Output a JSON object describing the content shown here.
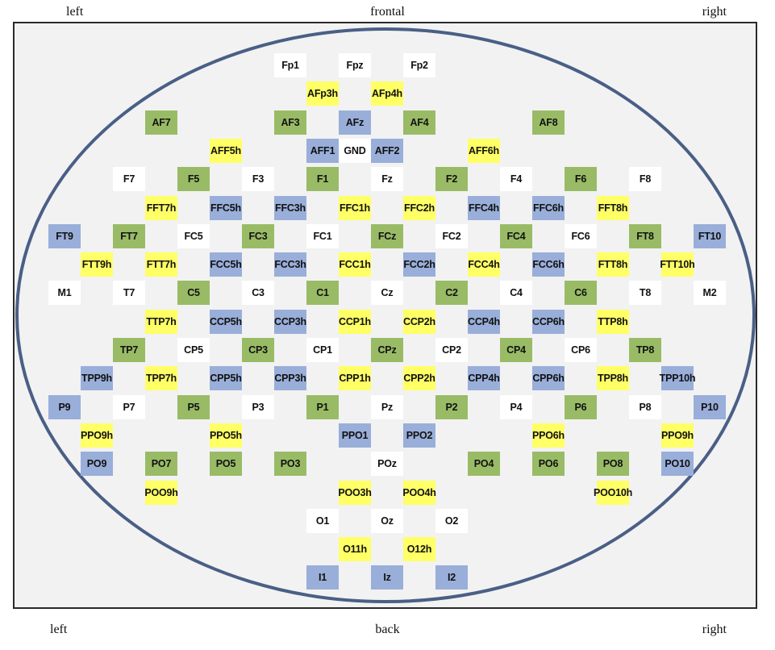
{
  "captions": {
    "top_left": "left",
    "top_center": "frontal",
    "top_right": "right",
    "bottom_left": "left",
    "bottom_center": "back",
    "bottom_right": "right"
  },
  "colors": {
    "W": "#ffffff",
    "Y": "#ffff66",
    "G": "#99bb66",
    "B": "#99aed9",
    "head_outline": "#4a5f86",
    "background": "#f2f2f2"
  },
  "rows": [
    {
      "cells": [
        [
          8,
          "Fp1",
          "W"
        ],
        [
          10,
          "Fpz",
          "W"
        ],
        [
          12,
          "Fp2",
          "W"
        ]
      ]
    },
    {
      "cells": [
        [
          9,
          "AFp3h",
          "Y"
        ],
        [
          11,
          "AFp4h",
          "Y"
        ]
      ]
    },
    {
      "cells": [
        [
          4,
          "AF7",
          "G"
        ],
        [
          8,
          "AF3",
          "G"
        ],
        [
          10,
          "AFz",
          "B"
        ],
        [
          12,
          "AF4",
          "G"
        ],
        [
          16,
          "AF8",
          "G"
        ]
      ]
    },
    {
      "cells": [
        [
          6,
          "AFF5h",
          "Y"
        ],
        [
          9,
          "AFF1",
          "B"
        ],
        [
          10,
          "GND",
          "W"
        ],
        [
          11,
          "AFF2",
          "B"
        ],
        [
          14,
          "AFF6h",
          "Y"
        ]
      ]
    },
    {
      "cells": [
        [
          3,
          "F7",
          "W"
        ],
        [
          5,
          "F5",
          "G"
        ],
        [
          7,
          "F3",
          "W"
        ],
        [
          9,
          "F1",
          "G"
        ],
        [
          11,
          "Fz",
          "W"
        ],
        [
          13,
          "F2",
          "G"
        ],
        [
          15,
          "F4",
          "W"
        ],
        [
          17,
          "F6",
          "G"
        ],
        [
          19,
          "F8",
          "W"
        ]
      ]
    },
    {
      "cells": [
        [
          4,
          "FFT7h",
          "Y"
        ],
        [
          6,
          "FFC5h",
          "B"
        ],
        [
          8,
          "FFC3h",
          "B"
        ],
        [
          10,
          "FFC1h",
          "Y"
        ],
        [
          12,
          "FFC2h",
          "Y"
        ],
        [
          14,
          "FFC4h",
          "B"
        ],
        [
          16,
          "FFC6h",
          "B"
        ],
        [
          18,
          "FFT8h",
          "Y"
        ]
      ]
    },
    {
      "cells": [
        [
          1,
          "FT9",
          "B"
        ],
        [
          3,
          "FT7",
          "G"
        ],
        [
          5,
          "FC5",
          "W"
        ],
        [
          7,
          "FC3",
          "G"
        ],
        [
          9,
          "FC1",
          "W"
        ],
        [
          11,
          "FCz",
          "G"
        ],
        [
          13,
          "FC2",
          "W"
        ],
        [
          15,
          "FC4",
          "G"
        ],
        [
          17,
          "FC6",
          "W"
        ],
        [
          19,
          "FT8",
          "G"
        ],
        [
          21,
          "FT10",
          "B"
        ]
      ]
    },
    {
      "cells": [
        [
          2,
          "FTT9h",
          "Y"
        ],
        [
          4,
          "FTT7h",
          "Y"
        ],
        [
          6,
          "FCC5h",
          "B"
        ],
        [
          8,
          "FCC3h",
          "B"
        ],
        [
          10,
          "FCC1h",
          "Y"
        ],
        [
          12,
          "FCC2h",
          "B"
        ],
        [
          14,
          "FCC4h",
          "Y"
        ],
        [
          16,
          "FCC6h",
          "B"
        ],
        [
          18,
          "FTT8h",
          "Y"
        ],
        [
          20,
          "FTT10h",
          "Y"
        ]
      ]
    },
    {
      "cells": [
        [
          1,
          "M1",
          "W"
        ],
        [
          3,
          "T7",
          "W"
        ],
        [
          5,
          "C5",
          "G"
        ],
        [
          7,
          "C3",
          "W"
        ],
        [
          9,
          "C1",
          "G"
        ],
        [
          11,
          "Cz",
          "W"
        ],
        [
          13,
          "C2",
          "G"
        ],
        [
          15,
          "C4",
          "W"
        ],
        [
          17,
          "C6",
          "G"
        ],
        [
          19,
          "T8",
          "W"
        ],
        [
          21,
          "M2",
          "W"
        ]
      ]
    },
    {
      "cells": [
        [
          4,
          "TTP7h",
          "Y"
        ],
        [
          6,
          "CCP5h",
          "B"
        ],
        [
          8,
          "CCP3h",
          "B"
        ],
        [
          10,
          "CCP1h",
          "Y"
        ],
        [
          12,
          "CCP2h",
          "Y"
        ],
        [
          14,
          "CCP4h",
          "B"
        ],
        [
          16,
          "CCP6h",
          "B"
        ],
        [
          18,
          "TTP8h",
          "Y"
        ]
      ]
    },
    {
      "cells": [
        [
          3,
          "TP7",
          "G"
        ],
        [
          5,
          "CP5",
          "W"
        ],
        [
          7,
          "CP3",
          "G"
        ],
        [
          9,
          "CP1",
          "W"
        ],
        [
          11,
          "CPz",
          "G"
        ],
        [
          13,
          "CP2",
          "W"
        ],
        [
          15,
          "CP4",
          "G"
        ],
        [
          17,
          "CP6",
          "W"
        ],
        [
          19,
          "TP8",
          "G"
        ]
      ]
    },
    {
      "cells": [
        [
          2,
          "TPP9h",
          "B"
        ],
        [
          4,
          "TPP7h",
          "Y"
        ],
        [
          6,
          "CPP5h",
          "B"
        ],
        [
          8,
          "CPP3h",
          "B"
        ],
        [
          10,
          "CPP1h",
          "Y"
        ],
        [
          12,
          "CPP2h",
          "Y"
        ],
        [
          14,
          "CPP4h",
          "B"
        ],
        [
          16,
          "CPP6h",
          "B"
        ],
        [
          18,
          "TPP8h",
          "Y"
        ],
        [
          20,
          "TPP10h",
          "B"
        ]
      ]
    },
    {
      "cells": [
        [
          1,
          "P9",
          "B"
        ],
        [
          3,
          "P7",
          "W"
        ],
        [
          5,
          "P5",
          "G"
        ],
        [
          7,
          "P3",
          "W"
        ],
        [
          9,
          "P1",
          "G"
        ],
        [
          11,
          "Pz",
          "W"
        ],
        [
          13,
          "P2",
          "G"
        ],
        [
          15,
          "P4",
          "W"
        ],
        [
          17,
          "P6",
          "G"
        ],
        [
          19,
          "P8",
          "W"
        ],
        [
          21,
          "P10",
          "B"
        ]
      ]
    },
    {
      "cells": [
        [
          2,
          "PPO9h",
          "Y"
        ],
        [
          6,
          "PPO5h",
          "Y"
        ],
        [
          10,
          "PPO1",
          "B"
        ],
        [
          12,
          "PPO2",
          "B"
        ],
        [
          16,
          "PPO6h",
          "Y"
        ],
        [
          20,
          "PPO9h",
          "Y"
        ]
      ]
    },
    {
      "cells": [
        [
          2,
          "PO9",
          "B"
        ],
        [
          4,
          "PO7",
          "G"
        ],
        [
          6,
          "PO5",
          "G"
        ],
        [
          8,
          "PO3",
          "G"
        ],
        [
          11,
          "POz",
          "W"
        ],
        [
          14,
          "PO4",
          "G"
        ],
        [
          16,
          "PO6",
          "G"
        ],
        [
          18,
          "PO8",
          "G"
        ],
        [
          20,
          "PO10",
          "B"
        ]
      ]
    },
    {
      "cells": [
        [
          4,
          "POO9h",
          "Y"
        ],
        [
          10,
          "POO3h",
          "Y"
        ],
        [
          12,
          "POO4h",
          "Y"
        ],
        [
          18,
          "POO10h",
          "Y"
        ]
      ]
    },
    {
      "cells": [
        [
          9,
          "O1",
          "W"
        ],
        [
          11,
          "Oz",
          "W"
        ],
        [
          13,
          "O2",
          "W"
        ]
      ]
    },
    {
      "cells": [
        [
          10,
          "O11h",
          "Y"
        ],
        [
          12,
          "O12h",
          "Y"
        ]
      ]
    },
    {
      "cells": [
        [
          9,
          "I1",
          "B"
        ],
        [
          11,
          "Iz",
          "B"
        ],
        [
          13,
          "I2",
          "B"
        ]
      ]
    }
  ]
}
